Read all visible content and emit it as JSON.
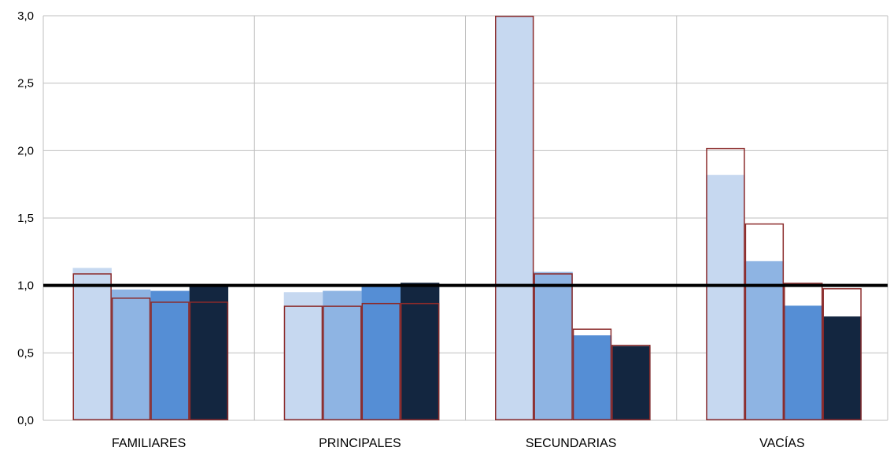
{
  "chart_data": {
    "type": "bar",
    "categories": [
      "FAMILIARES",
      "PRINCIPALES",
      "SECUNDARIAS",
      "VACÍAS"
    ],
    "ylim": [
      0,
      3
    ],
    "yticks": [
      "0,0",
      "0,5",
      "1,0",
      "1,5",
      "2,0",
      "2,5",
      "3,0"
    ],
    "reference_line": 1.0,
    "grid": true,
    "series": [
      {
        "values": [
          1.13,
          0.95,
          3.0,
          1.82
        ],
        "color": "#c6d8f0"
      },
      {
        "values": [
          0.97,
          0.96,
          1.1,
          1.18
        ],
        "color": "#8eb4e3"
      },
      {
        "values": [
          0.96,
          0.99,
          0.63,
          0.85
        ],
        "color": "#558ed5"
      },
      {
        "values": [
          0.99,
          1.02,
          0.55,
          0.77
        ],
        "color": "#132640"
      }
    ],
    "outline_series": {
      "values": [
        [
          1.09,
          0.91,
          0.88,
          0.88
        ],
        [
          0.85,
          0.85,
          0.87,
          0.87
        ],
        [
          3.0,
          1.09,
          0.68,
          0.56
        ],
        [
          2.02,
          1.46,
          1.02,
          0.98
        ]
      ],
      "color": "#8b2b2b"
    }
  }
}
